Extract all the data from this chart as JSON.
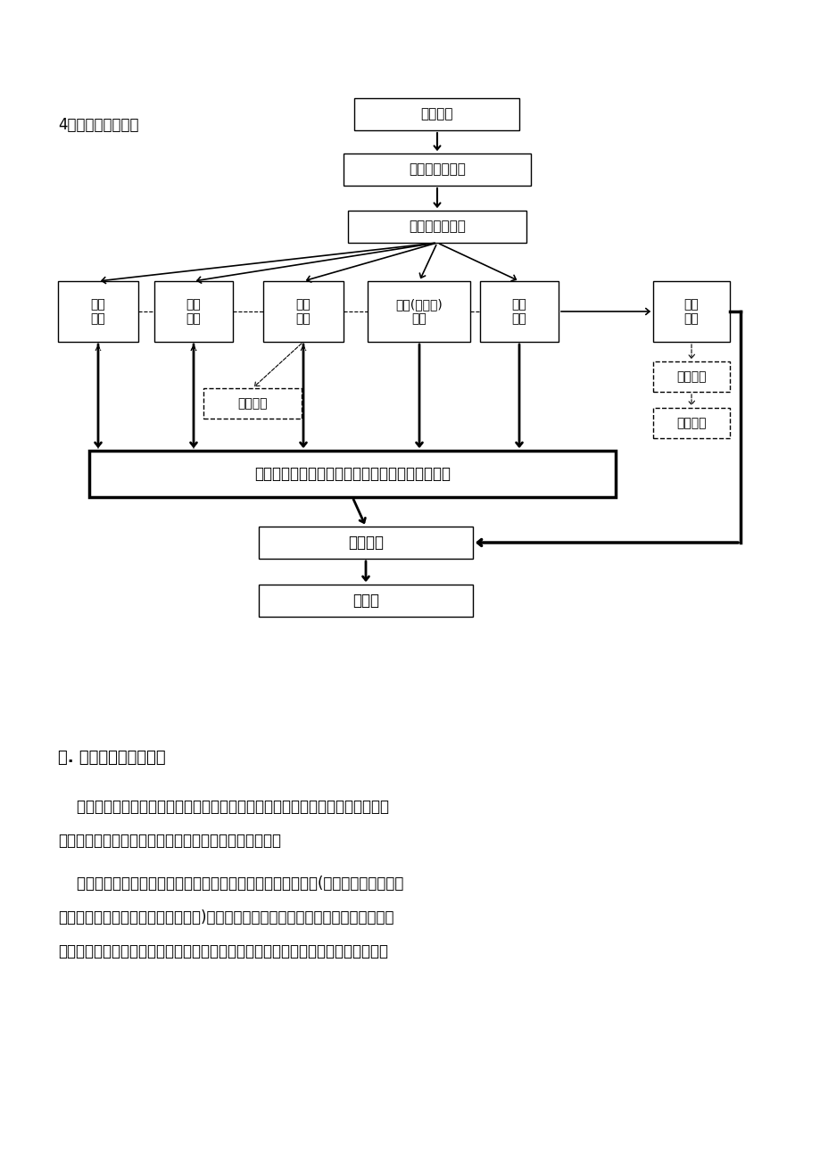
{
  "bg_color": "#ffffff",
  "title_label": "4、施工顺序流程：",
  "section_title": "三. 施工进度保障措施：",
  "para1_line1": "    利用网络计划法把施工对象的各有关施工过程组成一个有机整体，因此能全面、",
  "para1_line2": "明确地反映出各工序之间的相互制约和相互依赖的关系。",
  "para2_line1": "    进行各工序的时间参数计算，在工序繁多、错综复杂的计划中(包括机房设备安装、",
  "para2_line2": "消防报警、消防自动灭火装置安装等)找出影响工程进度的关键工序，便于管理人员集",
  "para2_line3": "中精力抓住施工中的主要矛盾，利于避免重复施工、无效益返工和盲目抢工，确保施",
  "box1_text": "现场清理",
  "box2_text": "主要材料采购进",
  "box3_text": "现场测量、划线",
  "wb0_text": "吊顶\n工程",
  "wb1_text": "墙面\n柱面",
  "wb2_text": "隔断\n工程",
  "wb3_text": "电气(含布线)\n工程",
  "wb4_text": "地面\n工程",
  "shebei_text": "设备\n安装",
  "tiaoshi_text": "设备调试",
  "yanshou_text": "设备验收",
  "menchuang_text": "门窗工程",
  "tongshi_text": "同时开展，相互协调，自检，互检，隐蔽工程检验",
  "fenxiang_text": "分项验收",
  "zong_text": "总验收"
}
